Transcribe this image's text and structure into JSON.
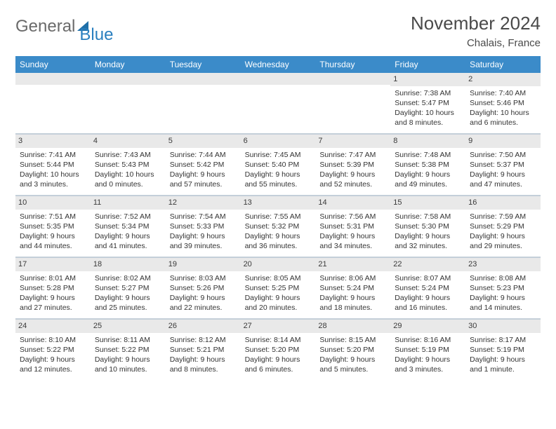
{
  "logo": {
    "general": "General",
    "blue": "Blue"
  },
  "title": "November 2024",
  "location": "Chalais, France",
  "header_bg": "#3b8bc9",
  "daynum_bg": "#e9e9e9",
  "divider_color": "#c4cfd9",
  "weekdays": [
    "Sunday",
    "Monday",
    "Tuesday",
    "Wednesday",
    "Thursday",
    "Friday",
    "Saturday"
  ],
  "weeks": [
    [
      {
        "n": "",
        "sr": "",
        "ss": "",
        "dl": ""
      },
      {
        "n": "",
        "sr": "",
        "ss": "",
        "dl": ""
      },
      {
        "n": "",
        "sr": "",
        "ss": "",
        "dl": ""
      },
      {
        "n": "",
        "sr": "",
        "ss": "",
        "dl": ""
      },
      {
        "n": "",
        "sr": "",
        "ss": "",
        "dl": ""
      },
      {
        "n": "1",
        "sr": "Sunrise: 7:38 AM",
        "ss": "Sunset: 5:47 PM",
        "dl": "Daylight: 10 hours and 8 minutes."
      },
      {
        "n": "2",
        "sr": "Sunrise: 7:40 AM",
        "ss": "Sunset: 5:46 PM",
        "dl": "Daylight: 10 hours and 6 minutes."
      }
    ],
    [
      {
        "n": "3",
        "sr": "Sunrise: 7:41 AM",
        "ss": "Sunset: 5:44 PM",
        "dl": "Daylight: 10 hours and 3 minutes."
      },
      {
        "n": "4",
        "sr": "Sunrise: 7:43 AM",
        "ss": "Sunset: 5:43 PM",
        "dl": "Daylight: 10 hours and 0 minutes."
      },
      {
        "n": "5",
        "sr": "Sunrise: 7:44 AM",
        "ss": "Sunset: 5:42 PM",
        "dl": "Daylight: 9 hours and 57 minutes."
      },
      {
        "n": "6",
        "sr": "Sunrise: 7:45 AM",
        "ss": "Sunset: 5:40 PM",
        "dl": "Daylight: 9 hours and 55 minutes."
      },
      {
        "n": "7",
        "sr": "Sunrise: 7:47 AM",
        "ss": "Sunset: 5:39 PM",
        "dl": "Daylight: 9 hours and 52 minutes."
      },
      {
        "n": "8",
        "sr": "Sunrise: 7:48 AM",
        "ss": "Sunset: 5:38 PM",
        "dl": "Daylight: 9 hours and 49 minutes."
      },
      {
        "n": "9",
        "sr": "Sunrise: 7:50 AM",
        "ss": "Sunset: 5:37 PM",
        "dl": "Daylight: 9 hours and 47 minutes."
      }
    ],
    [
      {
        "n": "10",
        "sr": "Sunrise: 7:51 AM",
        "ss": "Sunset: 5:35 PM",
        "dl": "Daylight: 9 hours and 44 minutes."
      },
      {
        "n": "11",
        "sr": "Sunrise: 7:52 AM",
        "ss": "Sunset: 5:34 PM",
        "dl": "Daylight: 9 hours and 41 minutes."
      },
      {
        "n": "12",
        "sr": "Sunrise: 7:54 AM",
        "ss": "Sunset: 5:33 PM",
        "dl": "Daylight: 9 hours and 39 minutes."
      },
      {
        "n": "13",
        "sr": "Sunrise: 7:55 AM",
        "ss": "Sunset: 5:32 PM",
        "dl": "Daylight: 9 hours and 36 minutes."
      },
      {
        "n": "14",
        "sr": "Sunrise: 7:56 AM",
        "ss": "Sunset: 5:31 PM",
        "dl": "Daylight: 9 hours and 34 minutes."
      },
      {
        "n": "15",
        "sr": "Sunrise: 7:58 AM",
        "ss": "Sunset: 5:30 PM",
        "dl": "Daylight: 9 hours and 32 minutes."
      },
      {
        "n": "16",
        "sr": "Sunrise: 7:59 AM",
        "ss": "Sunset: 5:29 PM",
        "dl": "Daylight: 9 hours and 29 minutes."
      }
    ],
    [
      {
        "n": "17",
        "sr": "Sunrise: 8:01 AM",
        "ss": "Sunset: 5:28 PM",
        "dl": "Daylight: 9 hours and 27 minutes."
      },
      {
        "n": "18",
        "sr": "Sunrise: 8:02 AM",
        "ss": "Sunset: 5:27 PM",
        "dl": "Daylight: 9 hours and 25 minutes."
      },
      {
        "n": "19",
        "sr": "Sunrise: 8:03 AM",
        "ss": "Sunset: 5:26 PM",
        "dl": "Daylight: 9 hours and 22 minutes."
      },
      {
        "n": "20",
        "sr": "Sunrise: 8:05 AM",
        "ss": "Sunset: 5:25 PM",
        "dl": "Daylight: 9 hours and 20 minutes."
      },
      {
        "n": "21",
        "sr": "Sunrise: 8:06 AM",
        "ss": "Sunset: 5:24 PM",
        "dl": "Daylight: 9 hours and 18 minutes."
      },
      {
        "n": "22",
        "sr": "Sunrise: 8:07 AM",
        "ss": "Sunset: 5:24 PM",
        "dl": "Daylight: 9 hours and 16 minutes."
      },
      {
        "n": "23",
        "sr": "Sunrise: 8:08 AM",
        "ss": "Sunset: 5:23 PM",
        "dl": "Daylight: 9 hours and 14 minutes."
      }
    ],
    [
      {
        "n": "24",
        "sr": "Sunrise: 8:10 AM",
        "ss": "Sunset: 5:22 PM",
        "dl": "Daylight: 9 hours and 12 minutes."
      },
      {
        "n": "25",
        "sr": "Sunrise: 8:11 AM",
        "ss": "Sunset: 5:22 PM",
        "dl": "Daylight: 9 hours and 10 minutes."
      },
      {
        "n": "26",
        "sr": "Sunrise: 8:12 AM",
        "ss": "Sunset: 5:21 PM",
        "dl": "Daylight: 9 hours and 8 minutes."
      },
      {
        "n": "27",
        "sr": "Sunrise: 8:14 AM",
        "ss": "Sunset: 5:20 PM",
        "dl": "Daylight: 9 hours and 6 minutes."
      },
      {
        "n": "28",
        "sr": "Sunrise: 8:15 AM",
        "ss": "Sunset: 5:20 PM",
        "dl": "Daylight: 9 hours and 5 minutes."
      },
      {
        "n": "29",
        "sr": "Sunrise: 8:16 AM",
        "ss": "Sunset: 5:19 PM",
        "dl": "Daylight: 9 hours and 3 minutes."
      },
      {
        "n": "30",
        "sr": "Sunrise: 8:17 AM",
        "ss": "Sunset: 5:19 PM",
        "dl": "Daylight: 9 hours and 1 minute."
      }
    ]
  ]
}
